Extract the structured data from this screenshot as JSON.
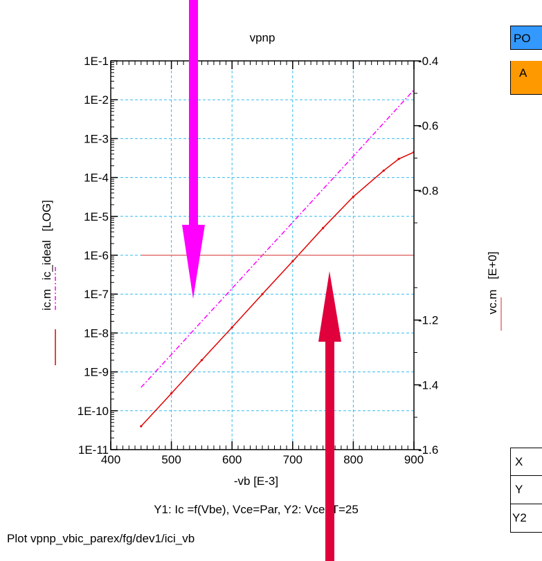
{
  "chart_data": {
    "type": "line",
    "title": "vpnp",
    "xlabel": "-vb  [E-3]",
    "xlim": [
      400,
      900
    ],
    "x_ticks": [
      "400",
      "500",
      "600",
      "700",
      "800",
      "900"
    ],
    "y_left": {
      "label_parts": [
        "ic.m",
        "ic_ideal",
        "[LOG]"
      ],
      "scale": "log",
      "lim": [
        1e-11,
        0.1
      ],
      "ticks": [
        "1E-11",
        "1E-10",
        "1E-9",
        "1E-8",
        "1E-7",
        "1E-6",
        "1E-5",
        "1E-4",
        "1E-3",
        "1E-2",
        "1E-1"
      ]
    },
    "y_right": {
      "label_parts": [
        "vc.m",
        "[E+0]"
      ],
      "lim": [
        -1.6,
        -0.4
      ],
      "ticks": [
        "-1.6",
        "-1.4",
        "-1.2",
        "-0.8",
        "-0.6",
        "-0.4"
      ],
      "tick_values": [
        -1.6,
        -1.4,
        -1.2,
        -0.8,
        -0.6,
        -0.4
      ]
    },
    "grid": true,
    "series": [
      {
        "name": "ic_ideal",
        "axis": "left",
        "color": "#ff00ff",
        "style": "dash-dot",
        "x": [
          450,
          500,
          550,
          600,
          650,
          700,
          750,
          800,
          850,
          900
        ],
        "y": [
          4e-10,
          2.8e-09,
          2e-08,
          1.4e-07,
          1e-06,
          7e-06,
          5e-05,
          0.00035,
          0.0025,
          0.018
        ]
      },
      {
        "name": "ic.m",
        "axis": "left",
        "color": "#e00000",
        "style": "solid",
        "x": [
          450,
          500,
          550,
          600,
          650,
          700,
          750,
          800,
          850,
          875,
          900
        ],
        "y": [
          4e-11,
          2.8e-10,
          2e-09,
          1.4e-08,
          1e-07,
          7e-07,
          5e-06,
          3.2e-05,
          0.00015,
          0.0003,
          0.00045
        ]
      },
      {
        "name": "vc.m",
        "axis": "right",
        "color": "#e07070",
        "style": "solid",
        "x": [
          450,
          900
        ],
        "y": [
          -1.0,
          -1.0
        ]
      }
    ],
    "caption": "Y1: Ic =f(Vbe), Vce=Par, Y2: Vce, T=25",
    "footer": "Plot vpnp_vbic_parex/fg/dev1/ici_vb"
  },
  "annotations": {
    "magenta_arrow_color": "#ff00ff",
    "crimson_arrow_color": "#e0003c"
  },
  "side_panel": {
    "top_box_text": "PO",
    "top_box_color": "#3399ff",
    "second_box_text": "A",
    "second_box_color": "#ff9900",
    "table_rows": [
      "X",
      "Y",
      "Y2"
    ]
  }
}
